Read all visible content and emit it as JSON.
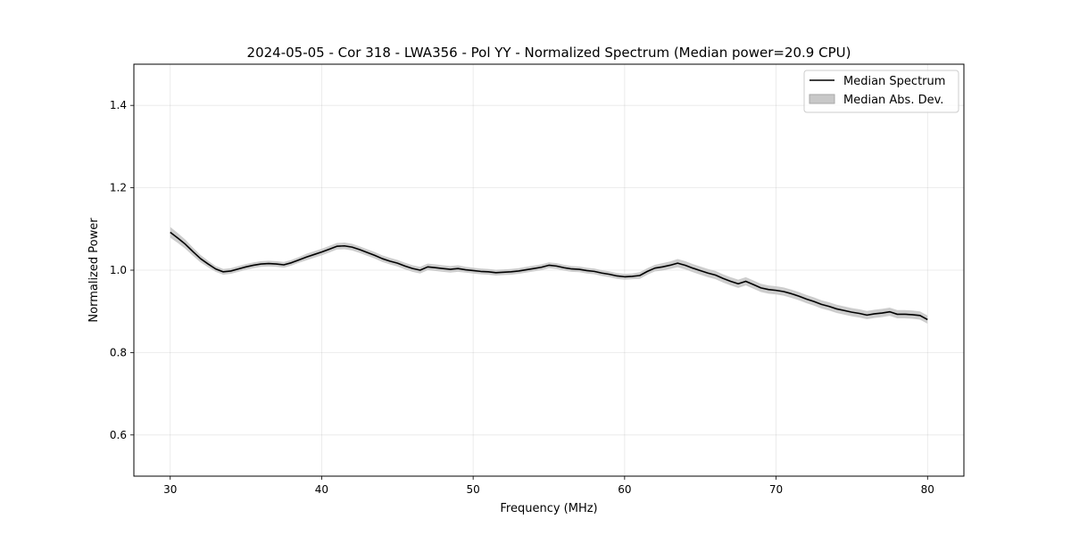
{
  "chart_data": {
    "type": "line",
    "title": "2024-05-05 - Cor 318 - LWA356 - Pol YY - Normalized Spectrum (Median power=20.9 CPU)",
    "xlabel": "Frequency (MHz)",
    "ylabel": "Normalized Power",
    "xlim": [
      27.6,
      82.4
    ],
    "ylim": [
      0.5,
      1.5
    ],
    "xticks": [
      30,
      40,
      50,
      60,
      70,
      80
    ],
    "yticks": [
      0.6,
      0.8,
      1.0,
      1.2,
      1.4
    ],
    "grid": true,
    "legend_position": "top-right",
    "series": [
      {
        "name": "Median Spectrum",
        "kind": "line",
        "color": "#000000",
        "x": [
          30,
          30.5,
          31,
          31.5,
          32,
          32.5,
          33,
          33.5,
          34,
          34.5,
          35,
          35.5,
          36,
          36.5,
          37,
          37.5,
          38,
          38.5,
          39,
          39.5,
          40,
          40.5,
          41,
          41.5,
          42,
          42.5,
          43,
          43.5,
          44,
          44.5,
          45,
          45.5,
          46,
          46.5,
          47,
          47.5,
          48,
          48.5,
          49,
          49.5,
          50,
          50.5,
          51,
          51.5,
          52,
          52.5,
          53,
          53.5,
          54,
          54.5,
          55,
          55.5,
          56,
          56.5,
          57,
          57.5,
          58,
          58.5,
          59,
          59.5,
          60,
          60.5,
          61,
          61.5,
          62,
          62.5,
          63,
          63.5,
          64,
          64.5,
          65,
          65.5,
          66,
          66.5,
          67,
          67.5,
          68,
          68.5,
          69,
          69.5,
          70,
          70.5,
          71,
          71.5,
          72,
          72.5,
          73,
          73.5,
          74,
          74.5,
          75,
          75.5,
          76,
          76.5,
          77,
          77.5,
          78,
          78.5,
          79,
          79.5,
          80
        ],
        "y": [
          1.092,
          1.078,
          1.063,
          1.045,
          1.028,
          1.015,
          1.003,
          0.996,
          0.998,
          1.003,
          1.008,
          1.012,
          1.015,
          1.016,
          1.015,
          1.013,
          1.018,
          1.025,
          1.032,
          1.038,
          1.044,
          1.051,
          1.058,
          1.059,
          1.056,
          1.05,
          1.043,
          1.036,
          1.028,
          1.022,
          1.017,
          1.01,
          1.004,
          1.0,
          1.008,
          1.006,
          1.004,
          1.002,
          1.004,
          1.001,
          0.999,
          0.997,
          0.996,
          0.994,
          0.995,
          0.996,
          0.998,
          1.001,
          1.004,
          1.007,
          1.012,
          1.01,
          1.006,
          1.003,
          1.002,
          0.999,
          0.997,
          0.993,
          0.99,
          0.986,
          0.984,
          0.985,
          0.987,
          0.997,
          1.005,
          1.008,
          1.012,
          1.017,
          1.012,
          1.005,
          0.999,
          0.993,
          0.988,
          0.98,
          0.973,
          0.967,
          0.973,
          0.965,
          0.957,
          0.953,
          0.951,
          0.948,
          0.943,
          0.937,
          0.93,
          0.924,
          0.917,
          0.912,
          0.906,
          0.902,
          0.898,
          0.895,
          0.891,
          0.894,
          0.896,
          0.899,
          0.893,
          0.893,
          0.892,
          0.89,
          0.88
        ],
        "mad": [
          0.013,
          0.012,
          0.011,
          0.01,
          0.009,
          0.008,
          0.007,
          0.007,
          0.007,
          0.007,
          0.007,
          0.007,
          0.007,
          0.007,
          0.007,
          0.007,
          0.007,
          0.007,
          0.008,
          0.008,
          0.008,
          0.008,
          0.008,
          0.008,
          0.008,
          0.008,
          0.008,
          0.008,
          0.008,
          0.008,
          0.008,
          0.008,
          0.008,
          0.008,
          0.008,
          0.008,
          0.008,
          0.008,
          0.008,
          0.007,
          0.007,
          0.007,
          0.007,
          0.007,
          0.007,
          0.007,
          0.007,
          0.007,
          0.007,
          0.007,
          0.007,
          0.007,
          0.007,
          0.007,
          0.007,
          0.007,
          0.007,
          0.007,
          0.007,
          0.007,
          0.007,
          0.007,
          0.008,
          0.008,
          0.008,
          0.009,
          0.009,
          0.01,
          0.01,
          0.01,
          0.01,
          0.01,
          0.01,
          0.01,
          0.01,
          0.01,
          0.01,
          0.01,
          0.01,
          0.01,
          0.01,
          0.01,
          0.01,
          0.01,
          0.01,
          0.01,
          0.01,
          0.01,
          0.01,
          0.01,
          0.01,
          0.01,
          0.01,
          0.01,
          0.01,
          0.01,
          0.01,
          0.01,
          0.01,
          0.01,
          0.01
        ]
      },
      {
        "name": "Median Abs. Dev.",
        "kind": "band",
        "color": "#c8c8c8"
      }
    ]
  }
}
